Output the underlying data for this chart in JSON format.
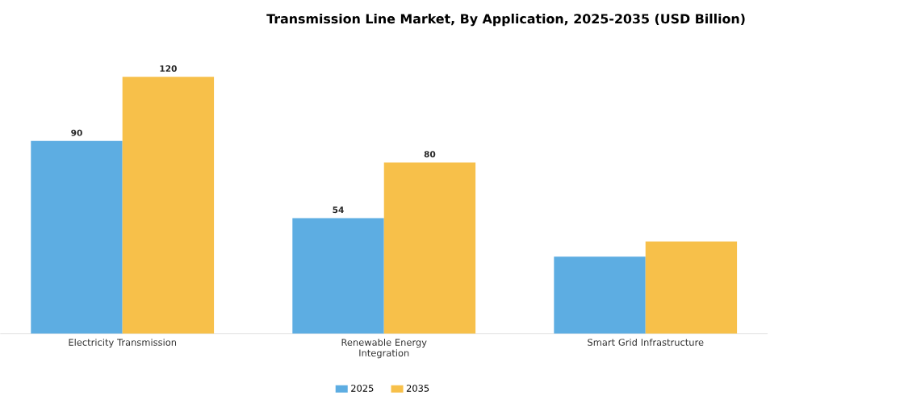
{
  "chart_data": {
    "type": "bar",
    "title": "Transmission Line Market, By Application, 2025-2035 (USD Billion)",
    "categories": [
      "Electricity Transmission",
      "Renewable Energy Integration",
      "Smart Grid Infrastructure"
    ],
    "series": [
      {
        "name": "2025",
        "color": "#5dade2",
        "values": [
          90,
          54,
          36
        ],
        "value_labels": [
          "90",
          "54",
          null
        ]
      },
      {
        "name": "2035",
        "color": "#f7c04a",
        "values": [
          120,
          80,
          43
        ],
        "value_labels": [
          "120",
          "80",
          null
        ]
      }
    ],
    "legend": "bottom"
  }
}
